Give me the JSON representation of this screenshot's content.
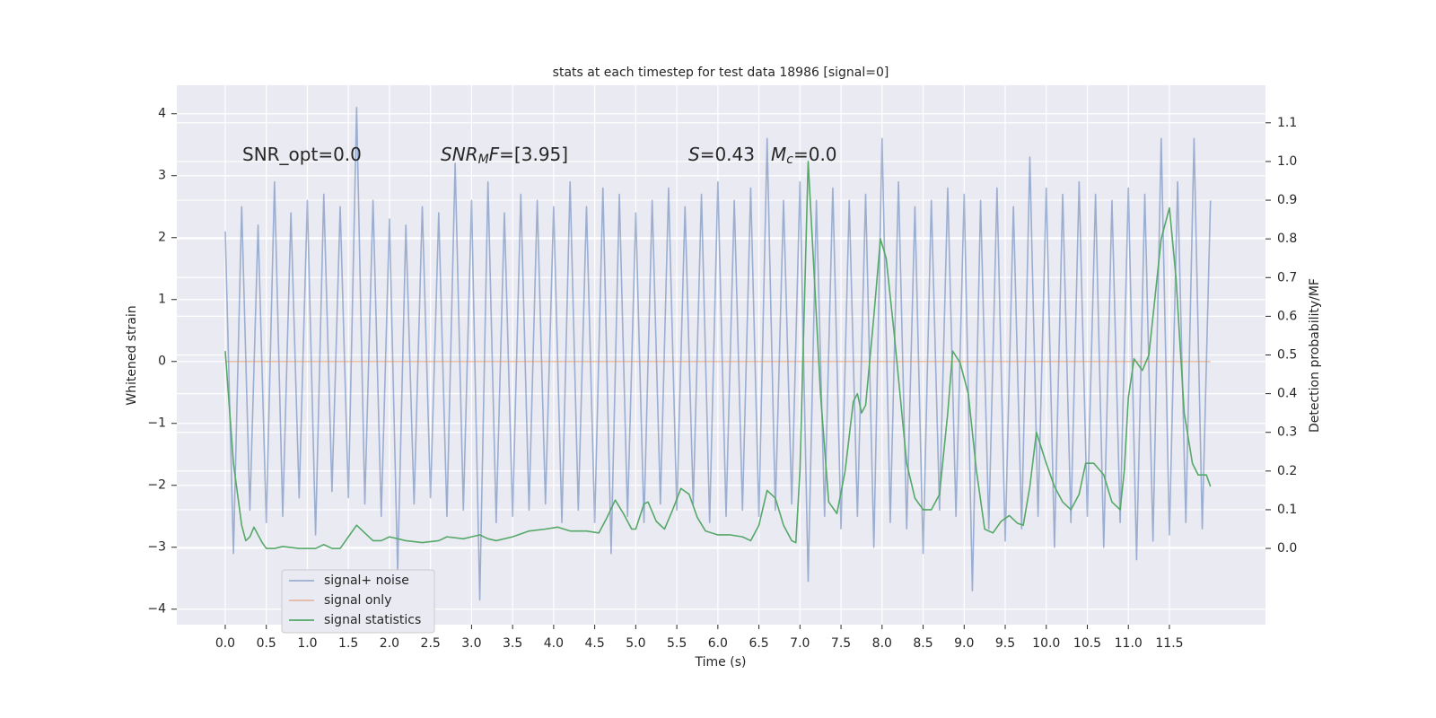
{
  "chart_data": {
    "type": "line",
    "title": "stats at each timestep for test data 18986 [signal=0]",
    "xlabel": "Time (s)",
    "ylabel": "Whitened strain",
    "y2label": "Detection probability/MF",
    "grid": true,
    "legend": "lower left",
    "annotations": [
      {
        "parts": [
          {
            "text": "SNR_opt=0.0",
            "style": "normal"
          }
        ]
      },
      {
        "parts": [
          {
            "text": "SNR",
            "style": "italic"
          },
          {
            "text": "M",
            "style": "sub"
          },
          {
            "text": "F",
            "style": "italic"
          },
          {
            "text": "=[3.95]",
            "style": "normal"
          }
        ]
      },
      {
        "parts": [
          {
            "text": "S",
            "style": "italic"
          },
          {
            "text": "=0.43",
            "style": "normal"
          }
        ]
      },
      {
        "parts": [
          {
            "text": "M",
            "style": "italic"
          },
          {
            "text": "c",
            "style": "sub"
          },
          {
            "text": "=0.0",
            "style": "normal"
          }
        ]
      }
    ],
    "xlim": [
      -0.59,
      12.67
    ],
    "ylim": [
      -4.25,
      4.46
    ],
    "y2lim": [
      -0.197,
      1.197
    ],
    "xticks": [
      {
        "value": 0,
        "label": "0.0"
      },
      0.5,
      {
        "value": 1,
        "label": "1.0"
      },
      1.5,
      {
        "value": 2,
        "label": "2.0"
      },
      2.5,
      {
        "value": 3,
        "label": "3.0"
      },
      3.5,
      {
        "value": 4,
        "label": "4.0"
      },
      4.5,
      {
        "value": 5,
        "label": "5.0"
      },
      5.5,
      {
        "value": 6,
        "label": "6.0"
      },
      6.5,
      {
        "value": 7,
        "label": "7.0"
      },
      7.5,
      {
        "value": 8,
        "label": "8.0"
      },
      8.5,
      {
        "value": 9,
        "label": "9.0"
      },
      9.5,
      {
        "value": 10,
        "label": "10.0"
      },
      10.5,
      {
        "value": 11,
        "label": "11.0"
      },
      11.5
    ],
    "yticks": [
      {
        "value": -4,
        "label": "−4"
      },
      {
        "value": -3,
        "label": "−3"
      },
      {
        "value": -2,
        "label": "−2"
      },
      {
        "value": -1,
        "label": "−1"
      },
      0,
      1,
      2,
      3,
      4
    ],
    "y2ticks": [
      {
        "value": 0,
        "label": "0.0"
      },
      0.1,
      0.2,
      0.3,
      0.4,
      0.5,
      0.6,
      0.7,
      0.8,
      0.9,
      {
        "value": 1,
        "label": "1.0"
      },
      1.1
    ],
    "series": [
      {
        "name": "signal+ noise",
        "color": "#4c72b0",
        "opacity": 0.5,
        "x": [
          0,
          0.1,
          0.2,
          0.3,
          0.4,
          0.5,
          0.6,
          0.7,
          0.8,
          0.9,
          1,
          1.1,
          1.2,
          1.3,
          1.4,
          1.5,
          1.6,
          1.7,
          1.8,
          1.9,
          2,
          2.1,
          2.2,
          2.3,
          2.4,
          2.5,
          2.6,
          2.7,
          2.8,
          2.9,
          3,
          3.1,
          3.2,
          3.3,
          3.4,
          3.5,
          3.6,
          3.7,
          3.8,
          3.9,
          4,
          4.1,
          4.2,
          4.3,
          4.4,
          4.5,
          4.6,
          4.7,
          4.8,
          4.9,
          5,
          5.1,
          5.2,
          5.3,
          5.4,
          5.5,
          5.6,
          5.7,
          5.8,
          5.9,
          6,
          6.1,
          6.2,
          6.3,
          6.4,
          6.5,
          6.6,
          6.7,
          6.8,
          6.9,
          7,
          7.1,
          7.2,
          7.3,
          7.4,
          7.5,
          7.6,
          7.7,
          7.8,
          7.9,
          8,
          8.1,
          8.2,
          8.3,
          8.4,
          8.5,
          8.6,
          8.7,
          8.8,
          8.9,
          9,
          9.1,
          9.2,
          9.3,
          9.4,
          9.5,
          9.6,
          9.7,
          9.8,
          9.9,
          10,
          10.1,
          10.2,
          10.3,
          10.4,
          10.5,
          10.6,
          10.7,
          10.8,
          10.9,
          11,
          11.1,
          11.2,
          11.3,
          11.4,
          11.5,
          11.6,
          11.7,
          11.8,
          11.9,
          12
        ],
        "values": [
          2.1,
          -3.1,
          2.5,
          -2.4,
          2.2,
          -2.6,
          2.9,
          -2.5,
          2.4,
          -2.2,
          2.6,
          -2.8,
          2.7,
          -2.1,
          2.5,
          -2.2,
          4.1,
          -2.3,
          2.6,
          -2.5,
          2.3,
          -3.4,
          2.2,
          -2.3,
          2.5,
          -2.2,
          2.4,
          -2.5,
          3.2,
          -2.4,
          2.6,
          -3.85,
          2.9,
          -2.6,
          2.4,
          -2.5,
          2.7,
          -2.4,
          2.6,
          -2.3,
          2.5,
          -2.6,
          2.9,
          -2.4,
          2.5,
          -2.6,
          2.8,
          -3.1,
          2.7,
          -2.5,
          2.4,
          -2.6,
          2.6,
          -2.3,
          2.8,
          -2.4,
          2.5,
          -2.3,
          2.7,
          -2.6,
          2.9,
          -2.5,
          2.6,
          -2.4,
          2.8,
          -2.5,
          3.6,
          -2.4,
          2.6,
          -2.3,
          2.9,
          -3.55,
          2.6,
          -2.5,
          2.8,
          -2.7,
          2.6,
          -2.5,
          2.7,
          -3.0,
          3.6,
          -2.6,
          2.9,
          -2.7,
          2.5,
          -3.1,
          2.6,
          -2.4,
          2.8,
          -2.5,
          2.7,
          -3.7,
          2.6,
          -2.7,
          2.8,
          -2.9,
          2.5,
          -2.7,
          3.3,
          -2.5,
          2.8,
          -3.0,
          2.7,
          -2.6,
          2.9,
          -2.5,
          2.7,
          -3.0,
          2.6,
          -2.6,
          2.8,
          -3.2,
          2.7,
          -2.9,
          3.6,
          -2.8,
          2.9,
          -2.6,
          3.6,
          -2.7,
          2.6
        ]
      },
      {
        "name": "signal only",
        "color": "#dd8452",
        "opacity": 0.5,
        "x": [
          0,
          12
        ],
        "values": [
          0,
          0
        ]
      },
      {
        "name": "signal statistics",
        "color": "#55a868",
        "opacity": 1,
        "axis": "y2",
        "x": [
          0,
          0.1,
          0.2,
          0.25,
          0.3,
          0.35,
          0.45,
          0.5,
          0.6,
          0.7,
          0.9,
          1.1,
          1.2,
          1.3,
          1.4,
          1.5,
          1.6,
          1.7,
          1.8,
          1.9,
          2,
          2.2,
          2.4,
          2.6,
          2.7,
          2.9,
          3,
          3.1,
          3.2,
          3.3,
          3.5,
          3.7,
          3.9,
          4.05,
          4.2,
          4.4,
          4.55,
          4.65,
          4.75,
          4.85,
          4.95,
          5,
          5.1,
          5.15,
          5.25,
          5.35,
          5.45,
          5.55,
          5.65,
          5.75,
          5.85,
          6,
          6.15,
          6.3,
          6.4,
          6.5,
          6.6,
          6.7,
          6.8,
          6.9,
          6.95,
          7,
          7.05,
          7.1,
          7.15,
          7.25,
          7.35,
          7.45,
          7.55,
          7.65,
          7.7,
          7.75,
          7.8,
          7.9,
          7.98,
          8.05,
          8.15,
          8.3,
          8.4,
          8.5,
          8.6,
          8.7,
          8.8,
          8.86,
          8.95,
          9.05,
          9.15,
          9.25,
          9.35,
          9.45,
          9.55,
          9.65,
          9.72,
          9.8,
          9.88,
          10,
          10.1,
          10.2,
          10.3,
          10.4,
          10.48,
          10.58,
          10.7,
          10.8,
          10.9,
          10.95,
          11,
          11.07,
          11.17,
          11.25,
          11.4,
          11.5,
          11.58,
          11.68,
          11.78,
          11.85,
          11.95,
          12
        ],
        "values": [
          0.51,
          0.22,
          0.06,
          0.02,
          0.03,
          0.055,
          0.015,
          0,
          0,
          0.005,
          0,
          0,
          0.01,
          0,
          0,
          0.03,
          0.06,
          0.04,
          0.02,
          0.02,
          0.03,
          0.02,
          0.015,
          0.02,
          0.03,
          0.025,
          0.03,
          0.035,
          0.025,
          0.02,
          0.03,
          0.045,
          0.05,
          0.055,
          0.045,
          0.045,
          0.04,
          0.08,
          0.125,
          0.09,
          0.05,
          0.05,
          0.115,
          0.12,
          0.07,
          0.05,
          0.1,
          0.155,
          0.14,
          0.08,
          0.045,
          0.035,
          0.035,
          0.03,
          0.02,
          0.06,
          0.15,
          0.13,
          0.06,
          0.02,
          0.015,
          0.2,
          0.6,
          1.0,
          0.8,
          0.4,
          0.12,
          0.09,
          0.2,
          0.38,
          0.4,
          0.35,
          0.37,
          0.6,
          0.8,
          0.75,
          0.55,
          0.22,
          0.13,
          0.1,
          0.1,
          0.14,
          0.35,
          0.51,
          0.48,
          0.4,
          0.2,
          0.05,
          0.04,
          0.07,
          0.085,
          0.065,
          0.06,
          0.16,
          0.3,
          0.22,
          0.16,
          0.12,
          0.1,
          0.14,
          0.22,
          0.22,
          0.19,
          0.12,
          0.1,
          0.2,
          0.39,
          0.49,
          0.46,
          0.5,
          0.8,
          0.88,
          0.7,
          0.35,
          0.22,
          0.19,
          0.19,
          0.16
        ]
      }
    ]
  }
}
